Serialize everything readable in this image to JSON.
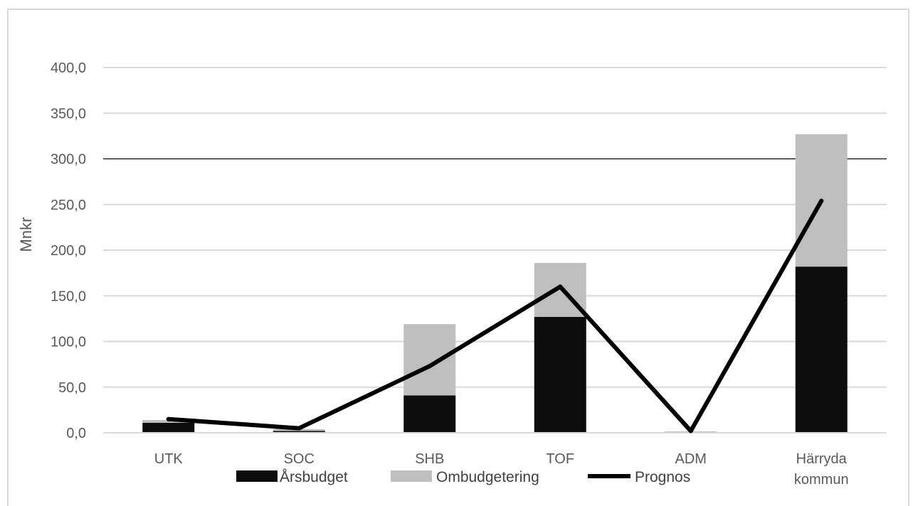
{
  "chart_data": {
    "type": "bar",
    "stacked": true,
    "ylabel": "Mnkr",
    "ylim": [
      0,
      400
    ],
    "yticks": [
      "0,0",
      "50,0",
      "100,0",
      "150,0",
      "200,0",
      "250,0",
      "300,0",
      "350,0",
      "400,0"
    ],
    "yticks_values": [
      0,
      50,
      100,
      150,
      200,
      250,
      300,
      350,
      400
    ],
    "reference_line": 300,
    "categories": [
      [
        "UTK"
      ],
      [
        "SOC"
      ],
      [
        "SHB"
      ],
      [
        "TOF"
      ],
      [
        "ADM"
      ],
      [
        "Härryda",
        "kommun"
      ]
    ],
    "series": [
      {
        "name": "Årsbudget",
        "kind": "bar",
        "color": "#0d0d0d",
        "values": [
          11,
          2,
          41,
          127,
          0.5,
          182
        ]
      },
      {
        "name": "Ombudgetering",
        "kind": "bar",
        "color": "#bfbfbf",
        "values": [
          3,
          2,
          78,
          59,
          1,
          145
        ]
      },
      {
        "name": "Prognos",
        "kind": "line",
        "color": "#000000",
        "values": [
          15,
          5,
          73,
          160,
          2,
          254
        ]
      }
    ],
    "grid": true,
    "legend_position": "bottom"
  }
}
